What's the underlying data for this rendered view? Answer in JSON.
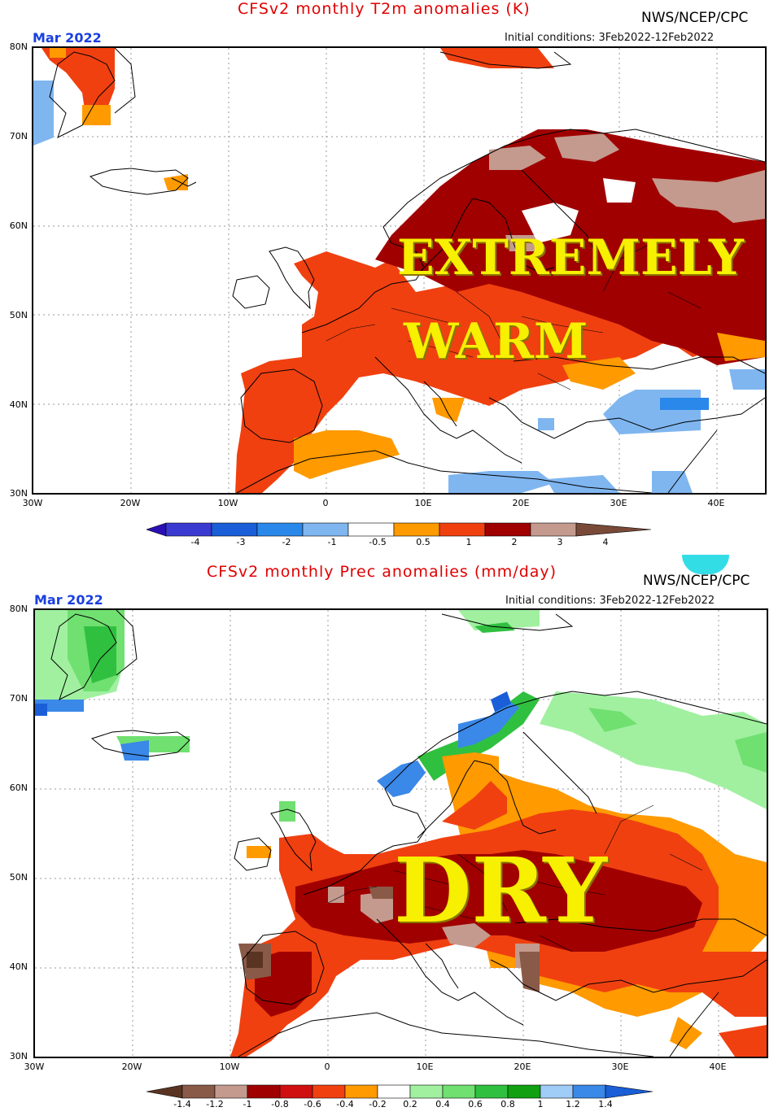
{
  "panels": [
    {
      "title": "CFSv2 monthly T2m anomalies (K)",
      "agency": "NWS/NCEP/CPC",
      "month": "Mar 2022",
      "initial": "Initial conditions: 3Feb2022-12Feb2022",
      "lat_labels": [
        "80N",
        "70N",
        "60N",
        "50N",
        "40N",
        "30N"
      ],
      "lon_labels": [
        "30W",
        "20W",
        "10W",
        "0",
        "10E",
        "20E",
        "30E",
        "40E"
      ],
      "overlay": [
        "EXTREMELY",
        "WARM"
      ],
      "colorbar_labels": [
        "-4",
        "-3",
        "-2",
        "-1",
        "-0.5",
        "0.5",
        "1",
        "2",
        "3",
        "4"
      ],
      "colorbar_colors": [
        "#2a0fb5",
        "#3a3ad2",
        "#1a5ed8",
        "#2a88ea",
        "#7fb6f0",
        "#ffffff",
        "#ff9a00",
        "#f04010",
        "#a00000",
        "#c49a8e",
        "#7a4a38"
      ]
    },
    {
      "title": "CFSv2 monthly Prec anomalies (mm/day)",
      "agency": "NWS/NCEP/CPC",
      "month": "Mar 2022",
      "initial": "Initial conditions: 3Feb2022-12Feb2022",
      "lat_labels": [
        "80N",
        "70N",
        "60N",
        "50N",
        "40N",
        "30N"
      ],
      "lon_labels": [
        "30W",
        "20W",
        "10W",
        "0",
        "10E",
        "20E",
        "30E",
        "40E"
      ],
      "overlay": [
        "DRY"
      ],
      "colorbar_labels": [
        "-1.4",
        "-1.2",
        "-1",
        "-0.8",
        "-0.6",
        "-0.4",
        "-0.2",
        "0.2",
        "0.4",
        "0.6",
        "0.8",
        "1",
        "1.2",
        "1.4"
      ],
      "colorbar_colors": [
        "#5a3422",
        "#8a5a48",
        "#c49a8e",
        "#a00000",
        "#d01010",
        "#f04010",
        "#ff9a00",
        "#ffffff",
        "#a0f0a0",
        "#70e070",
        "#30c040",
        "#10a010",
        "#a0ccf8",
        "#3a88e8",
        "#1a5ed8"
      ]
    }
  ]
}
